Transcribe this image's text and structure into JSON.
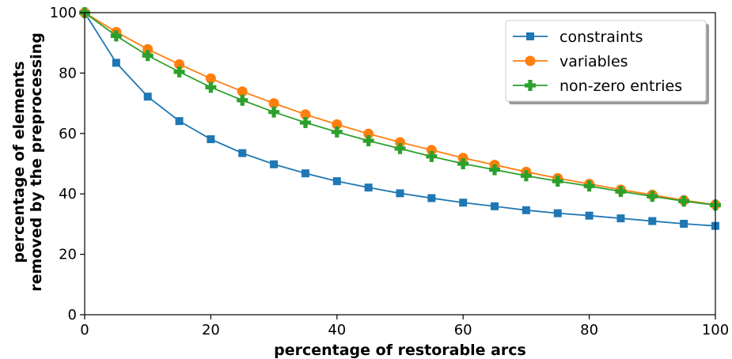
{
  "chart_data": {
    "type": "line",
    "xlabel": "percentage of restorable arcs",
    "ylabel_lines": [
      "percentage of elements",
      "removed by the preprocessing"
    ],
    "xlim": [
      0,
      100
    ],
    "ylim": [
      0,
      100
    ],
    "xticks": [
      0,
      20,
      40,
      60,
      80,
      100
    ],
    "yticks": [
      0,
      20,
      40,
      60,
      80,
      100
    ],
    "grid": false,
    "legend_position": "top-right",
    "x": [
      0,
      5,
      10,
      15,
      20,
      25,
      30,
      35,
      40,
      45,
      50,
      55,
      60,
      65,
      70,
      75,
      80,
      85,
      90,
      95,
      100
    ],
    "series": [
      {
        "name": "constraints",
        "color": "#1f77b4",
        "marker": "square",
        "values": [
          100,
          83.4,
          72.2,
          64.1,
          58.1,
          53.5,
          49.8,
          46.8,
          44.2,
          42.1,
          40.2,
          38.6,
          37.1,
          35.9,
          34.6,
          33.6,
          32.8,
          31.9,
          31.0,
          30.1,
          29.4
        ]
      },
      {
        "name": "variables",
        "color": "#ff7f0e",
        "marker": "circle",
        "values": [
          100,
          93.6,
          87.9,
          82.9,
          78.2,
          73.9,
          70.0,
          66.3,
          63.0,
          59.9,
          57.1,
          54.5,
          51.9,
          49.6,
          47.3,
          45.2,
          43.3,
          41.4,
          39.7,
          37.9,
          36.4
        ]
      },
      {
        "name": "non-zero entries",
        "color": "#2ca02c",
        "marker": "plus",
        "values": [
          100,
          92.3,
          85.8,
          80.4,
          75.3,
          71.0,
          67.1,
          63.6,
          60.5,
          57.6,
          55.0,
          52.4,
          50.0,
          48.0,
          46.0,
          44.2,
          42.6,
          40.8,
          39.2,
          37.6,
          36.3
        ]
      }
    ]
  }
}
